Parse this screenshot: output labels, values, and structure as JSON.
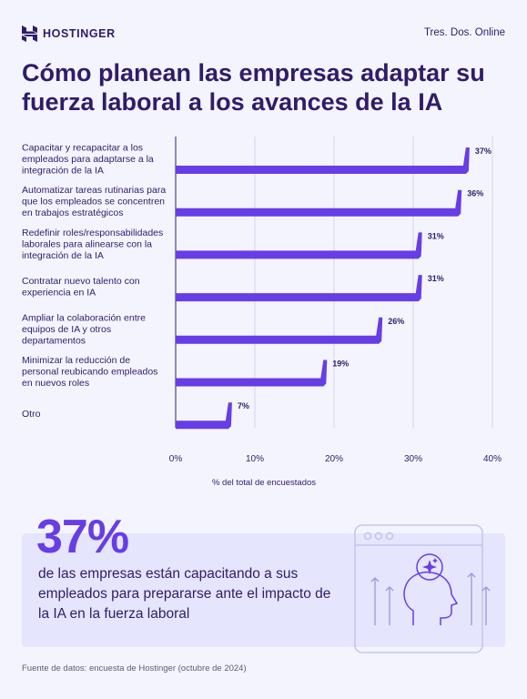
{
  "brand": {
    "name": "HOSTINGER",
    "tagline": "Tres. Dos. Online"
  },
  "title": "Cómo planean las empresas adaptar su fuerza laboral a los avances de la IA",
  "chart_data": {
    "type": "bar",
    "orientation": "horizontal",
    "categories": [
      [
        "Capacitar y recapacitar a los",
        "empleados para adaptarse a la",
        "integración de la IA"
      ],
      [
        "Automatizar tareas rutinarias para",
        "que los empleados se concentren",
        "en trabajos estratégicos"
      ],
      [
        "Redefinir roles/responsabilidades",
        "laborales para alinearse con la",
        "integración de la IA"
      ],
      [
        "Contratar nuevo talento con",
        "experiencia en IA"
      ],
      [
        "Ampliar la colaboración entre",
        "equipos de IA y otros",
        "departamentos"
      ],
      [
        "Minimizar la reducción de",
        "personal reubicando empleados",
        "en nuevos roles"
      ],
      [
        "Otro"
      ]
    ],
    "values": [
      37,
      36,
      31,
      31,
      26,
      19,
      7
    ],
    "value_labels": [
      "37%",
      "36%",
      "31%",
      "31%",
      "26%",
      "19%",
      "7%"
    ],
    "xlim": [
      0,
      40
    ],
    "xticks": [
      "0%",
      "10%",
      "20%",
      "30%",
      "40%"
    ],
    "xlabel": "% del total de encuestados",
    "grid": true,
    "bar_color": "#673de6"
  },
  "callout": {
    "number": "37%",
    "text": "de las empresas están capacitando a sus empleados para prepararse ante el impacto de la IA en la fuerza laboral"
  },
  "source": "Fuente de datos: encuesta de Hostinger (octubre de 2024)",
  "colors": {
    "background": "#f4f4fe",
    "primary_text": "#2f1c6a",
    "accent": "#673de6",
    "callout_bg": "#e5e5fd"
  },
  "icons": [
    "hostinger-logo-icon",
    "lightbulb-head-icon",
    "sparkle-icon"
  ]
}
